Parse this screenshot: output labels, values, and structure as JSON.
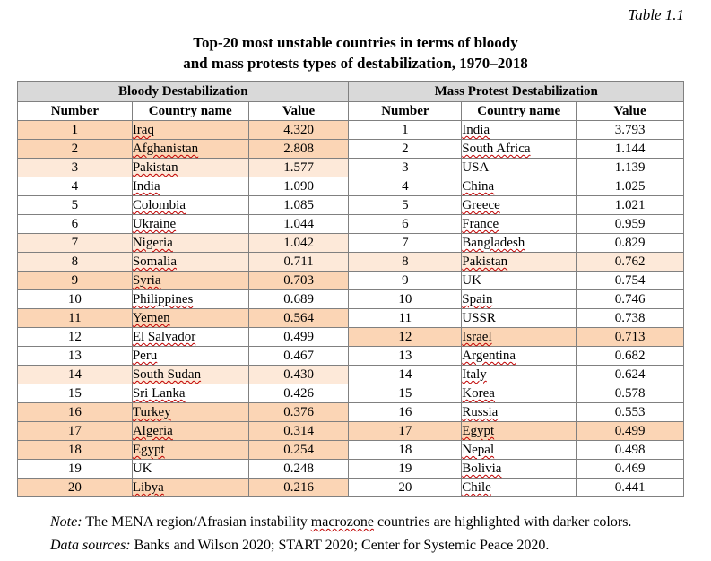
{
  "table_label": "Table 1.1",
  "title_line1": "Top-20 most unstable countries in terms of bloody",
  "title_line2": "and mass protests types of destabilization, 1970–2018",
  "group_headers": {
    "bloody": "Bloody Destabilization",
    "mass": "Mass Protest Destabilization"
  },
  "col_headers": {
    "number": "Number",
    "country": "Country name",
    "value": "Value"
  },
  "highlight_colors": {
    "dark": "#fbd5b5",
    "light": "#fde9d9"
  },
  "bloody": [
    {
      "n": "1",
      "country": "Iraq",
      "value": "4.320",
      "hl": "dark",
      "sq": true
    },
    {
      "n": "2",
      "country": "Afghanistan",
      "value": "2.808",
      "hl": "dark",
      "sq": true
    },
    {
      "n": "3",
      "country": "Pakistan",
      "value": "1.577",
      "hl": "light",
      "sq": true
    },
    {
      "n": "4",
      "country": "India",
      "value": "1.090",
      "hl": "",
      "sq": true
    },
    {
      "n": "5",
      "country": "Colombia",
      "value": "1.085",
      "hl": "",
      "sq": true
    },
    {
      "n": "6",
      "country": "Ukraine",
      "value": "1.044",
      "hl": "",
      "sq": true
    },
    {
      "n": "7",
      "country": "Nigeria",
      "value": "1.042",
      "hl": "light",
      "sq": true
    },
    {
      "n": "8",
      "country": "Somalia",
      "value": "0.711",
      "hl": "light",
      "sq": true
    },
    {
      "n": "9",
      "country": "Syria",
      "value": "0.703",
      "hl": "dark",
      "sq": true
    },
    {
      "n": "10",
      "country": "Philippines",
      "value": "0.689",
      "hl": "",
      "sq": true
    },
    {
      "n": "11",
      "country": "Yemen",
      "value": "0.564",
      "hl": "dark",
      "sq": true
    },
    {
      "n": "12",
      "country": "El Salvador",
      "value": "0.499",
      "hl": "",
      "sq": true
    },
    {
      "n": "13",
      "country": "Peru",
      "value": "0.467",
      "hl": "",
      "sq": true
    },
    {
      "n": "14",
      "country": "South Sudan",
      "value": "0.430",
      "hl": "light",
      "sq": true
    },
    {
      "n": "15",
      "country": "Sri Lanka",
      "value": "0.426",
      "hl": "",
      "sq": true
    },
    {
      "n": "16",
      "country": "Turkey",
      "value": "0.376",
      "hl": "dark",
      "sq": true
    },
    {
      "n": "17",
      "country": "Algeria",
      "value": "0.314",
      "hl": "dark",
      "sq": true
    },
    {
      "n": "18",
      "country": "Egypt",
      "value": "0.254",
      "hl": "dark",
      "sq": true
    },
    {
      "n": "19",
      "country": "UK",
      "value": "0.248",
      "hl": "",
      "sq": false
    },
    {
      "n": "20",
      "country": "Libya",
      "value": "0.216",
      "hl": "dark",
      "sq": true
    }
  ],
  "mass": [
    {
      "n": "1",
      "country": "India",
      "value": "3.793",
      "hl": "",
      "sq": true
    },
    {
      "n": "2",
      "country": "South Africa",
      "value": "1.144",
      "hl": "",
      "sq": true
    },
    {
      "n": "3",
      "country": "USA",
      "value": "1.139",
      "hl": "",
      "sq": false
    },
    {
      "n": "4",
      "country": "China",
      "value": "1.025",
      "hl": "",
      "sq": true
    },
    {
      "n": "5",
      "country": "Greece",
      "value": "1.021",
      "hl": "",
      "sq": true
    },
    {
      "n": "6",
      "country": "France",
      "value": "0.959",
      "hl": "",
      "sq": true
    },
    {
      "n": "7",
      "country": "Bangladesh",
      "value": "0.829",
      "hl": "",
      "sq": true
    },
    {
      "n": "8",
      "country": "Pakistan",
      "value": "0.762",
      "hl": "light",
      "sq": true
    },
    {
      "n": "9",
      "country": "UK",
      "value": "0.754",
      "hl": "",
      "sq": false
    },
    {
      "n": "10",
      "country": "Spain",
      "value": "0.746",
      "hl": "",
      "sq": true
    },
    {
      "n": "11",
      "country": "USSR",
      "value": "0.738",
      "hl": "",
      "sq": false
    },
    {
      "n": "12",
      "country": "Israel",
      "value": "0.713",
      "hl": "dark",
      "sq": true
    },
    {
      "n": "13",
      "country": "Argentina",
      "value": "0.682",
      "hl": "",
      "sq": true
    },
    {
      "n": "14",
      "country": "Italy",
      "value": "0.624",
      "hl": "",
      "sq": true
    },
    {
      "n": "15",
      "country": "Korea",
      "value": "0.578",
      "hl": "",
      "sq": true
    },
    {
      "n": "16",
      "country": "Russia",
      "value": "0.553",
      "hl": "",
      "sq": true
    },
    {
      "n": "17",
      "country": "Egypt",
      "value": "0.499",
      "hl": "dark",
      "sq": true
    },
    {
      "n": "18",
      "country": "Nepal",
      "value": "0.498",
      "hl": "",
      "sq": true
    },
    {
      "n": "19",
      "country": "Bolivia",
      "value": "0.469",
      "hl": "",
      "sq": true
    },
    {
      "n": "20",
      "country": "Chile",
      "value": "0.441",
      "hl": "",
      "sq": true
    }
  ],
  "note": {
    "label": "Note:",
    "text_before": " The MENA region/Afrasian instability ",
    "macrozone": "macrozone",
    "text_after": " countries are highlighted with darker colors."
  },
  "sources": {
    "label": "Data sources:",
    "text": " Banks and Wilson 2020; START 2020; Center for Systemic Peace 2020."
  }
}
